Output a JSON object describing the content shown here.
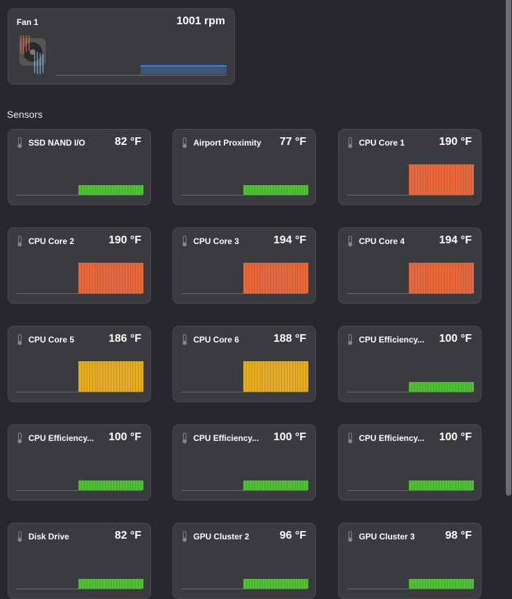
{
  "fan": {
    "name": "Fan 1",
    "value": "1001 rpm",
    "icon": "fan-icon",
    "level_percent": 50,
    "color": "#3f7be0"
  },
  "section_title": "Sensors",
  "colors": {
    "green": "#4fc132",
    "orange": "#e8693c",
    "yellow": "#e6ad25"
  },
  "sensors": [
    {
      "name": "SSD NAND I/O",
      "value": "82 °F",
      "color": "green"
    },
    {
      "name": "Airport Proximity",
      "value": "77 °F",
      "color": "green"
    },
    {
      "name": "CPU Core 1",
      "value": "190 °F",
      "color": "orange"
    },
    {
      "name": "CPU Core 2",
      "value": "190 °F",
      "color": "orange"
    },
    {
      "name": "CPU Core 3",
      "value": "194 °F",
      "color": "orange"
    },
    {
      "name": "CPU Core 4",
      "value": "194 °F",
      "color": "orange"
    },
    {
      "name": "CPU Core 5",
      "value": "186 °F",
      "color": "yellow"
    },
    {
      "name": "CPU Core 6",
      "value": "188 °F",
      "color": "yellow"
    },
    {
      "name": "CPU Efficiency...",
      "value": "100 °F",
      "color": "green"
    },
    {
      "name": "CPU Efficiency...",
      "value": "100 °F",
      "color": "green"
    },
    {
      "name": "CPU Efficiency...",
      "value": "100 °F",
      "color": "green"
    },
    {
      "name": "CPU Efficiency...",
      "value": "100 °F",
      "color": "green"
    },
    {
      "name": "Disk Drive",
      "value": "82 °F",
      "color": "green"
    },
    {
      "name": "GPU Cluster 2",
      "value": "96 °F",
      "color": "green"
    },
    {
      "name": "GPU Cluster 3",
      "value": "98 °F",
      "color": "green"
    }
  ]
}
